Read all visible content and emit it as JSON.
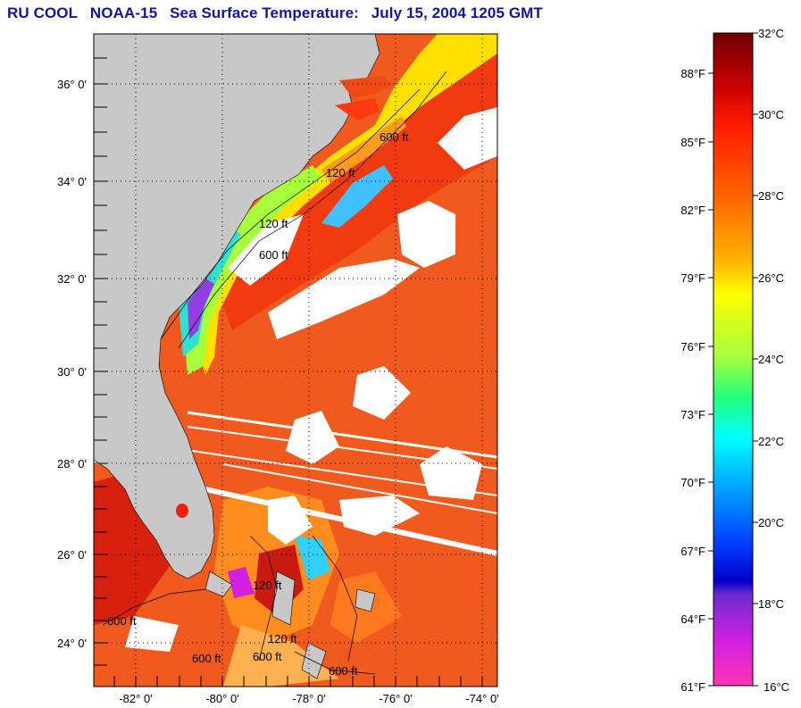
{
  "title": {
    "org": "RU COOL",
    "satellite": "NOAA-15",
    "product": "Sea Surface Temperature:",
    "date": "July 15, 2004 1205 GMT"
  },
  "map": {
    "lat_labels": [
      "36° 0'",
      "34° 0'",
      "32° 0'",
      "30° 0'",
      "28° 0'",
      "26° 0'",
      "24° 0'"
    ],
    "lon_labels": [
      "-82° 0'",
      "-80° 0'",
      "-78° 0'",
      "-76° 0'",
      "-74° 0'"
    ],
    "lat_range": [
      23,
      37
    ],
    "lon_range": [
      -83,
      -74
    ],
    "contour_labels": [
      "120 ft",
      "600 ft",
      "120 ft",
      "600 ft",
      "120 ft",
      "600 ft",
      "120 ft",
      "600 ft",
      "600 ft",
      "600 ft"
    ],
    "colors": {
      "land": "#c8c8c8",
      "cloud": "#ffffff",
      "warm": "#f05a1e"
    }
  },
  "colorbar": {
    "celsius": [
      "32°C",
      "30°C",
      "28°C",
      "26°C",
      "24°C",
      "22°C",
      "20°C",
      "18°C",
      "16°C"
    ],
    "fahrenheit": [
      "88°F",
      "85°F",
      "82°F",
      "79°F",
      "76°F",
      "73°F",
      "70°F",
      "67°F",
      "64°F",
      "61°F"
    ],
    "range_c": [
      16,
      32
    ]
  }
}
